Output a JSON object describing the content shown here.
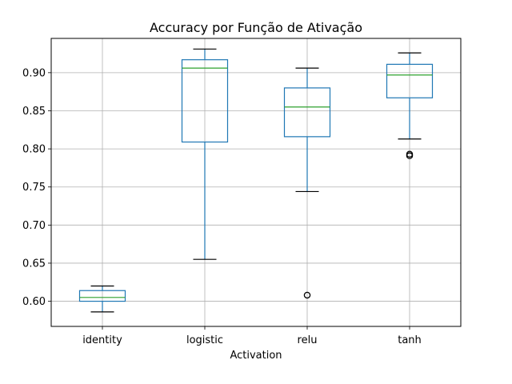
{
  "chart_data": {
    "type": "box",
    "title": "Accuracy por Função de Ativação",
    "xlabel": "Activation",
    "ylabel": "",
    "ylim": [
      0.567,
      0.945
    ],
    "yticks": [
      0.6,
      0.65,
      0.7,
      0.75,
      0.8,
      0.85,
      0.9
    ],
    "ytick_labels": [
      "0.60",
      "0.65",
      "0.70",
      "0.75",
      "0.80",
      "0.85",
      "0.90"
    ],
    "grid": true,
    "categories": [
      "identity",
      "logistic",
      "relu",
      "tanh"
    ],
    "boxes": [
      {
        "category": "identity",
        "whisker_low": 0.586,
        "q1": 0.6,
        "median": 0.605,
        "q3": 0.614,
        "whisker_high": 0.62,
        "outliers": []
      },
      {
        "category": "logistic",
        "whisker_low": 0.655,
        "q1": 0.809,
        "median": 0.906,
        "q3": 0.917,
        "whisker_high": 0.931,
        "outliers": []
      },
      {
        "category": "relu",
        "whisker_low": 0.744,
        "q1": 0.816,
        "median": 0.855,
        "q3": 0.88,
        "whisker_high": 0.906,
        "outliers": [
          0.608
        ]
      },
      {
        "category": "tanh",
        "whisker_low": 0.813,
        "q1": 0.867,
        "median": 0.897,
        "q3": 0.911,
        "whisker_high": 0.926,
        "outliers": [
          0.791,
          0.793
        ]
      }
    ],
    "colors": {
      "box": "#1f77b4",
      "median": "#2ca02c",
      "grid": "#b0b0b0",
      "outlier": "#000000"
    }
  }
}
